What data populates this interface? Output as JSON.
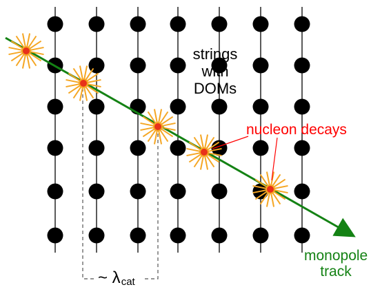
{
  "diagram": {
    "strings_label": [
      "strings",
      "with",
      "DOMs"
    ],
    "decay_label": "nucleon decays",
    "track_label": [
      "monopole",
      "track"
    ],
    "spacing_label": {
      "prefix": "~ λ",
      "subscript": "cat"
    },
    "colors": {
      "track": "#148214",
      "decay_label": "#ff0000",
      "decay_burst": "#f5a623",
      "decay_core": "#e8311a",
      "dom": "#000000",
      "string": "#000000",
      "bracket": "#555555"
    },
    "icons": {
      "dom": "filled-circle",
      "decay": "starburst"
    }
  }
}
